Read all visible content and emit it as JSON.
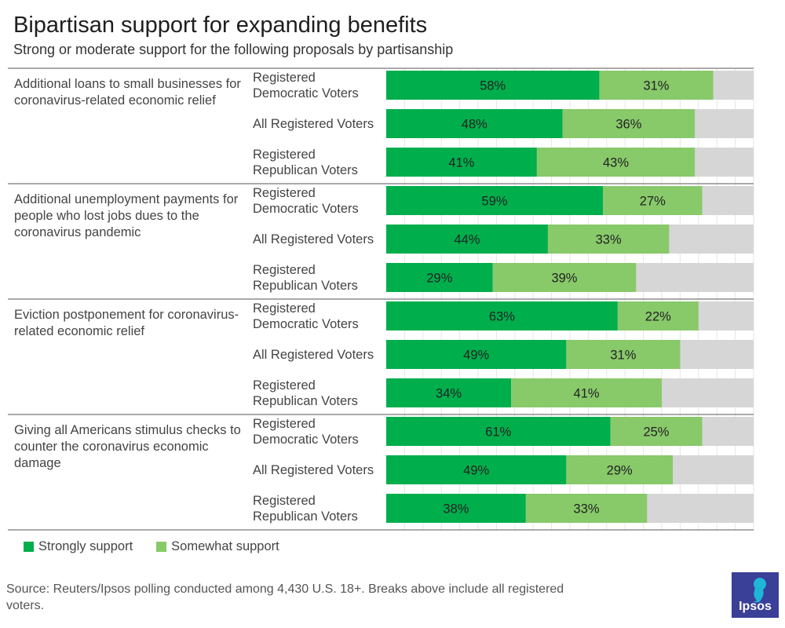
{
  "header": {
    "title": "Bipartisan support for expanding benefits",
    "subtitle": "Strong or moderate support for the following proposals by partisanship"
  },
  "colors": {
    "strong": "#00ae4c",
    "somewhat": "#88c96a",
    "rest": "#d6d6d6"
  },
  "chart_data": {
    "type": "bar",
    "orientation": "horizontal-stacked",
    "title": "Bipartisan support for expanding benefits",
    "subtitle": "Strong or moderate support for the following proposals by partisanship",
    "series_names": [
      "Strongly support",
      "Somewhat support"
    ],
    "xlim": [
      0,
      100
    ],
    "groups": [
      {
        "label": "Additional loans to small businesses for coronavirus-related economic relief",
        "rows": [
          {
            "label": "Registered Democratic Voters",
            "strong": 58,
            "somewhat": 31
          },
          {
            "label": "All Registered Voters",
            "strong": 48,
            "somewhat": 36
          },
          {
            "label": "Registered Republican Voters",
            "strong": 41,
            "somewhat": 43
          }
        ]
      },
      {
        "label": "Additional unemployment payments for people who lost jobs dues to the coronavirus pandemic",
        "rows": [
          {
            "label": "Registered Democratic Voters",
            "strong": 59,
            "somewhat": 27
          },
          {
            "label": "All Registered Voters",
            "strong": 44,
            "somewhat": 33
          },
          {
            "label": "Registered Republican Voters",
            "strong": 29,
            "somewhat": 39
          }
        ]
      },
      {
        "label": "Eviction postponement for coronavirus-related economic relief",
        "rows": [
          {
            "label": "Registered Democratic Voters",
            "strong": 63,
            "somewhat": 22
          },
          {
            "label": "All Registered Voters",
            "strong": 49,
            "somewhat": 31
          },
          {
            "label": "Registered Republican Voters",
            "strong": 34,
            "somewhat": 41
          }
        ]
      },
      {
        "label": "Giving all Americans stimulus checks to counter the coronavirus economic damage",
        "rows": [
          {
            "label": "Registered Democratic Voters",
            "strong": 61,
            "somewhat": 25
          },
          {
            "label": "All Registered Voters",
            "strong": 49,
            "somewhat": 29
          },
          {
            "label": "Registered Republican Voters",
            "strong": 38,
            "somewhat": 33
          }
        ]
      }
    ]
  },
  "legend": {
    "strong_label": "Strongly support",
    "somewhat_label": "Somewhat support"
  },
  "footer": {
    "source": "Source: Reuters/Ipsos polling conducted among 4,430 U.S. 18+. Breaks above include all registered voters.",
    "logo_text": "Ipsos"
  }
}
